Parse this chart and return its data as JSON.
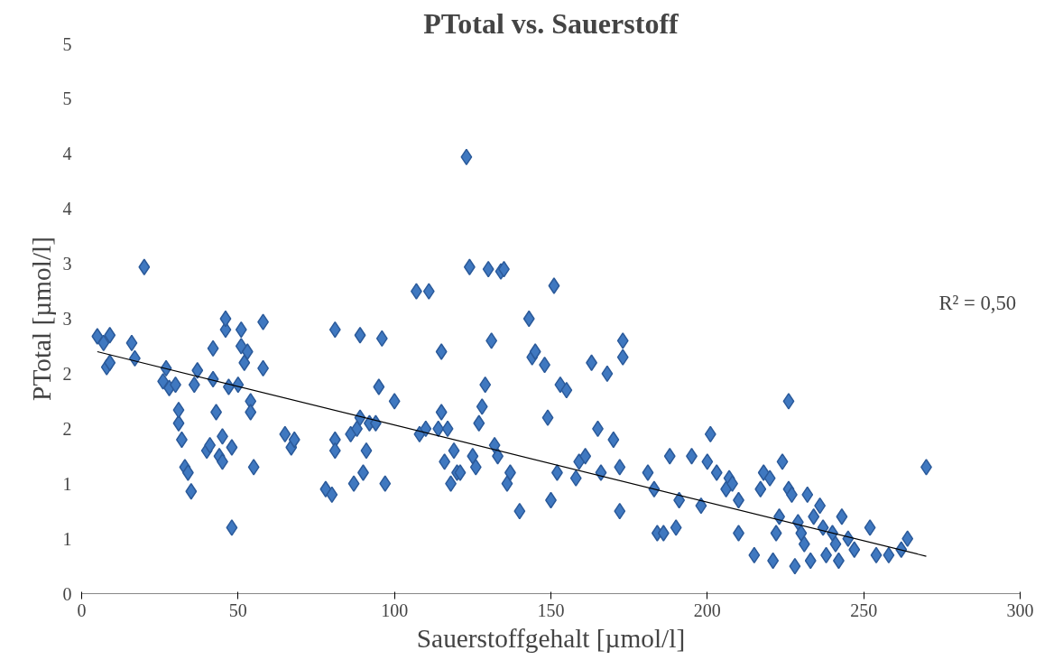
{
  "chart_data": {
    "type": "scatter",
    "title": "PTotal vs. Sauerstoff",
    "xlabel": "Sauerstoffgehalt [µmol/l]",
    "ylabel": "PTotal [µmol/l]",
    "xlim": [
      0,
      300
    ],
    "xticks": [
      0,
      50,
      100,
      150,
      200,
      250,
      300
    ],
    "ylim": [
      0,
      5
    ],
    "yticks": [
      0,
      {
        "value": 0.5,
        "label": "1"
      },
      1,
      {
        "value": 1.5,
        "label": "2"
      },
      2,
      {
        "value": 2.5,
        "label": "3"
      },
      3,
      {
        "value": 3.5,
        "label": "4"
      },
      4,
      {
        "value": 4.5,
        "label": "5"
      },
      5
    ],
    "grid": false,
    "annotations": [
      "R² = 0,50"
    ],
    "series": [
      {
        "color": "#3f78c0",
        "marker": "diamond",
        "x": [
          5,
          7,
          9,
          8,
          9,
          16,
          17,
          20,
          26,
          27,
          28,
          30,
          31,
          31,
          32,
          33,
          34,
          35,
          36,
          37,
          40,
          41,
          42,
          42,
          43,
          44,
          45,
          45,
          46,
          46,
          47,
          48,
          48,
          50,
          51,
          51,
          52,
          53,
          54,
          54,
          55,
          58,
          58,
          65,
          67,
          68,
          78,
          80,
          81,
          81,
          81,
          86,
          87,
          88,
          89,
          89,
          90,
          91,
          92,
          94,
          95,
          96,
          97,
          100,
          107,
          108,
          110,
          111,
          114,
          115,
          115,
          116,
          117,
          118,
          119,
          120,
          121,
          123,
          124,
          125,
          126,
          127,
          128,
          129,
          130,
          131,
          132,
          133,
          134,
          135,
          136,
          137,
          140,
          143,
          144,
          145,
          148,
          149,
          150,
          151,
          152,
          153,
          155,
          158,
          159,
          161,
          163,
          165,
          166,
          168,
          170,
          172,
          172,
          173,
          173,
          181,
          183,
          184,
          186,
          188,
          190,
          191,
          195,
          198,
          200,
          201,
          203,
          206,
          207,
          208,
          210,
          210,
          215,
          217,
          218,
          220,
          221,
          222,
          223,
          224,
          226,
          226,
          227,
          228,
          229,
          230,
          231,
          232,
          233,
          234,
          236,
          237,
          238,
          240,
          241,
          242,
          243,
          245,
          247,
          252,
          254,
          258,
          262,
          264,
          270
        ],
        "values": [
          2.34,
          2.28,
          2.35,
          2.06,
          2.1,
          2.28,
          2.14,
          2.97,
          1.93,
          2.05,
          1.87,
          1.9,
          1.55,
          1.67,
          1.4,
          1.15,
          1.1,
          0.93,
          1.9,
          2.03,
          1.3,
          1.35,
          2.23,
          1.95,
          1.65,
          1.25,
          1.43,
          1.2,
          2.4,
          2.5,
          1.88,
          1.33,
          0.6,
          1.9,
          2.4,
          2.25,
          2.1,
          2.2,
          1.75,
          1.65,
          1.15,
          2.05,
          2.47,
          1.45,
          1.33,
          1.4,
          0.95,
          0.9,
          1.4,
          1.3,
          2.4,
          1.45,
          1.0,
          1.5,
          1.6,
          2.35,
          1.1,
          1.3,
          1.55,
          1.55,
          1.88,
          2.32,
          1.0,
          1.75,
          2.75,
          1.45,
          1.5,
          2.75,
          1.5,
          1.65,
          2.2,
          1.2,
          1.5,
          1.0,
          1.3,
          1.1,
          1.1,
          3.97,
          2.97,
          1.25,
          1.15,
          1.55,
          1.7,
          1.9,
          2.95,
          2.3,
          1.35,
          1.25,
          2.93,
          2.95,
          1.0,
          1.1,
          0.75,
          2.5,
          2.15,
          2.2,
          2.08,
          1.6,
          0.85,
          2.8,
          1.1,
          1.9,
          1.85,
          1.05,
          1.2,
          1.25,
          2.1,
          1.5,
          1.1,
          2.0,
          1.4,
          1.15,
          0.75,
          2.15,
          2.3,
          1.1,
          0.95,
          0.55,
          0.55,
          1.25,
          0.6,
          0.85,
          1.25,
          0.8,
          1.2,
          1.45,
          1.1,
          0.95,
          1.05,
          1.0,
          0.85,
          0.55,
          0.35,
          0.95,
          1.1,
          1.05,
          0.3,
          0.55,
          0.7,
          1.2,
          0.95,
          1.75,
          0.9,
          0.25,
          0.65,
          0.55,
          0.45,
          0.9,
          0.3,
          0.7,
          0.8,
          0.6,
          0.35,
          0.55,
          0.45,
          0.3,
          0.7,
          0.5,
          0.4,
          0.6,
          0.35,
          0.35,
          0.4,
          0.5,
          1.15
        ]
      },
      {
        "type": "line",
        "color": "#000000",
        "marker": "none",
        "x": [
          5,
          270
        ],
        "values": [
          2.2,
          0.34
        ]
      }
    ]
  }
}
